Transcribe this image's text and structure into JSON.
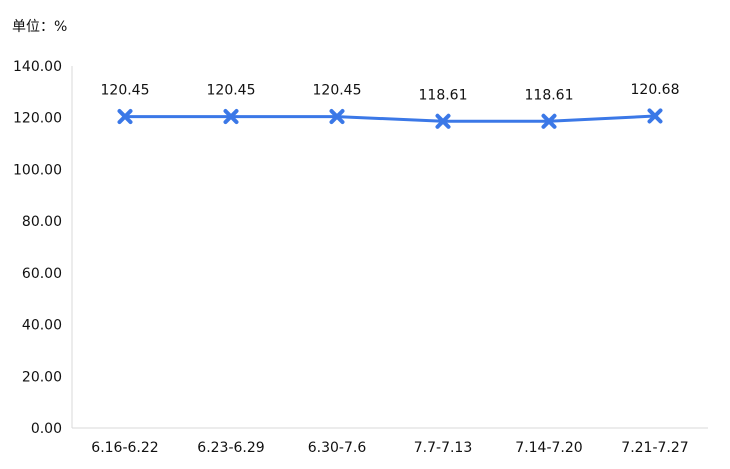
{
  "unit_label": "单位：%",
  "colors": {
    "line": "#3b78e7",
    "marker": "#3b78e7",
    "axis": "#d9d9d9",
    "text": "#111111"
  },
  "chart_data": {
    "type": "line",
    "title": "",
    "xlabel": "",
    "ylabel": "",
    "categories": [
      "6.16-6.22",
      "6.23-6.29",
      "6.30-7.6",
      "7.7-7.13",
      "7.14-7.20",
      "7.21-7.27"
    ],
    "series": [
      {
        "values": [
          120.45,
          120.45,
          120.45,
          118.61,
          118.61,
          120.68
        ],
        "labels": [
          "120.45",
          "120.45",
          "120.45",
          "118.61",
          "118.61",
          "120.68"
        ],
        "marker": "x"
      }
    ],
    "ylim": [
      0,
      140
    ],
    "yticks": [
      "0.00",
      "20.00",
      "40.00",
      "60.00",
      "80.00",
      "100.00",
      "120.00",
      "140.00"
    ],
    "grid": false,
    "legend": "none"
  }
}
